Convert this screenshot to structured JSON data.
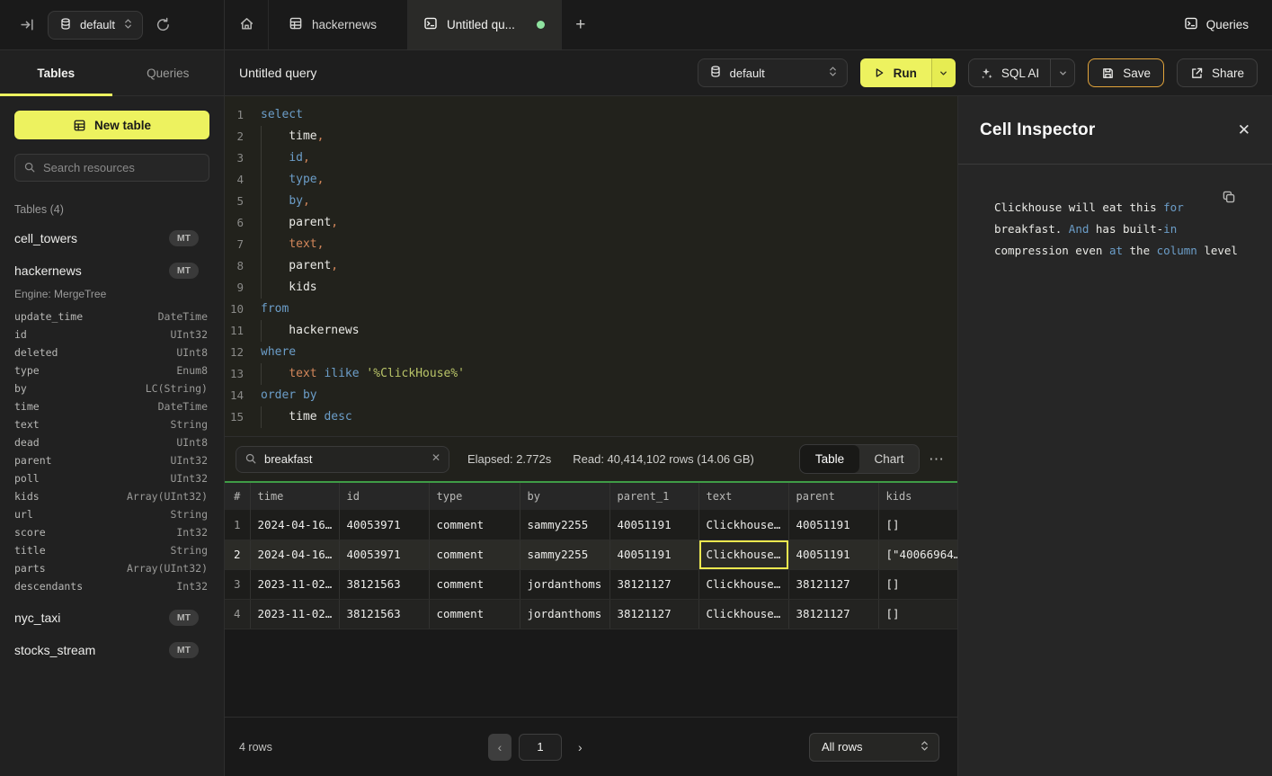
{
  "colors": {
    "accent_yellow": "#edf25f",
    "save_border": "#e2a43b",
    "tab_green_dot": "#8fe3a0",
    "table_header_green": "#3f9c46",
    "selected_cell_border": "#ece84f",
    "keyword_blue": "#6c9ec9",
    "string_olive": "#b9c468",
    "field_orange": "#d3875a"
  },
  "topbar": {
    "database": "default",
    "tab_hackernews": "hackernews",
    "tab_query": "Untitled qu...",
    "plus": "+",
    "queries_button": "Queries"
  },
  "sidebar": {
    "tab_tables": "Tables",
    "tab_queries": "Queries",
    "new_table": "New table",
    "search_placeholder": "Search resources",
    "section_label": "Tables (4)",
    "items": [
      {
        "name": "cell_towers",
        "badge": "MT"
      },
      {
        "name": "hackernews",
        "badge": "MT",
        "engine": "Engine: MergeTree",
        "columns": [
          [
            "update_time",
            "DateTime"
          ],
          [
            "id",
            "UInt32"
          ],
          [
            "deleted",
            "UInt8"
          ],
          [
            "type",
            "Enum8"
          ],
          [
            "by",
            "LC(String)"
          ],
          [
            "time",
            "DateTime"
          ],
          [
            "text",
            "String"
          ],
          [
            "dead",
            "UInt8"
          ],
          [
            "parent",
            "UInt32"
          ],
          [
            "poll",
            "UInt32"
          ],
          [
            "kids",
            "Array(UInt32)"
          ],
          [
            "url",
            "String"
          ],
          [
            "score",
            "Int32"
          ],
          [
            "title",
            "String"
          ],
          [
            "parts",
            "Array(UInt32)"
          ],
          [
            "descendants",
            "Int32"
          ]
        ]
      },
      {
        "name": "nyc_taxi",
        "badge": "MT"
      },
      {
        "name": "stocks_stream",
        "badge": "MT"
      }
    ]
  },
  "header": {
    "title": "Untitled query",
    "database": "default",
    "run_label": "Run",
    "sql_ai_label": "SQL AI",
    "save_label": "Save",
    "share_label": "Share"
  },
  "editor": {
    "lines": [
      [
        [
          "select",
          "kw"
        ]
      ],
      [
        [
          "    time",
          "p"
        ],
        [
          ",",
          "or"
        ]
      ],
      [
        [
          "    ",
          "p"
        ],
        [
          "id",
          "kw"
        ],
        [
          ",",
          "or"
        ]
      ],
      [
        [
          "    ",
          "p"
        ],
        [
          "type",
          "kw"
        ],
        [
          ",",
          "or"
        ]
      ],
      [
        [
          "    ",
          "p"
        ],
        [
          "by",
          "kw"
        ],
        [
          ",",
          "or"
        ]
      ],
      [
        [
          "    parent",
          "p"
        ],
        [
          ",",
          "or"
        ]
      ],
      [
        [
          "    ",
          "p"
        ],
        [
          "text",
          "or"
        ],
        [
          ",",
          "or"
        ]
      ],
      [
        [
          "    parent",
          "p"
        ],
        [
          ",",
          "or"
        ]
      ],
      [
        [
          "    kids",
          "p"
        ]
      ],
      [
        [
          "from",
          "kw"
        ]
      ],
      [
        [
          "    hackernews",
          "p"
        ]
      ],
      [
        [
          "where",
          "kw"
        ]
      ],
      [
        [
          "    ",
          "p"
        ],
        [
          "text",
          "or"
        ],
        [
          " ",
          "p"
        ],
        [
          "ilike",
          "kw"
        ],
        [
          " ",
          "p"
        ],
        [
          "'%ClickHouse%'",
          "str"
        ]
      ],
      [
        [
          "order by",
          "kw"
        ]
      ],
      [
        [
          "    time",
          "p"
        ],
        [
          " ",
          "p"
        ],
        [
          "desc",
          "kw"
        ]
      ]
    ]
  },
  "results": {
    "search_value": "breakfast",
    "elapsed": "Elapsed: 2.772s",
    "read": "Read: 40,414,102 rows (14.06 GB)",
    "view_table": "Table",
    "view_chart": "Chart",
    "columns": [
      "#",
      "time",
      "id",
      "type",
      "by",
      "parent_1",
      "text",
      "parent",
      "kids"
    ],
    "rows": [
      [
        "1",
        "2024-04-16…",
        "40053971",
        "comment",
        "sammy2255",
        "40051191",
        "Clickhouse…",
        "40051191",
        "[]"
      ],
      [
        "2",
        "2024-04-16…",
        "40053971",
        "comment",
        "sammy2255",
        "40051191",
        "Clickhouse…",
        "40051191",
        "[\"40066964…"
      ],
      [
        "3",
        "2023-11-02…",
        "38121563",
        "comment",
        "jordanthoms",
        "38121127",
        "Clickhouse…",
        "38121127",
        "[]"
      ],
      [
        "4",
        "2023-11-02…",
        "38121563",
        "comment",
        "jordanthoms",
        "38121127",
        "Clickhouse…",
        "38121127",
        "[]"
      ]
    ],
    "selected": {
      "row_index": 1,
      "col_index": 6
    },
    "rows_count": "4 rows",
    "page": "1",
    "page_size": "All rows"
  },
  "inspector": {
    "title": "Cell Inspector",
    "segments": [
      [
        "Clickhouse will eat this ",
        "p"
      ],
      [
        "for",
        "kw"
      ],
      [
        " breakfast. ",
        "p"
      ],
      [
        "And",
        "kw"
      ],
      [
        " has built-",
        "p"
      ],
      [
        "in",
        "kw"
      ],
      [
        " compression even ",
        "p"
      ],
      [
        "at",
        "kw"
      ],
      [
        " the ",
        "p"
      ],
      [
        "column",
        "kw"
      ],
      [
        " level",
        "p"
      ]
    ]
  }
}
